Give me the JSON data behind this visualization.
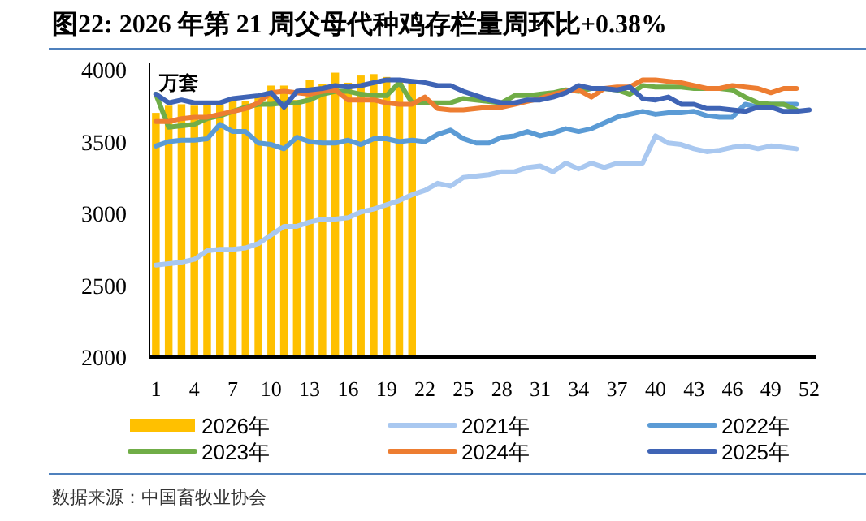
{
  "chart_data": {
    "type": "bar",
    "title": "图22: 2026 年第 21 周父母代种鸡存栏量周环比+0.38%",
    "ylabel": "万套",
    "categories": [
      "1",
      null,
      null,
      "4",
      null,
      null,
      "7",
      null,
      null,
      "10",
      null,
      null,
      "13",
      null,
      null,
      "16",
      null,
      null,
      "19",
      null,
      null,
      "22",
      null,
      null,
      "25",
      null,
      null,
      "28",
      null,
      null,
      "31",
      null,
      null,
      "34",
      null,
      null,
      "37",
      null,
      null,
      "40",
      null,
      null,
      "43",
      null,
      null,
      "46",
      null,
      null,
      "49",
      null,
      null,
      "52"
    ],
    "ylim": [
      2000,
      4000
    ],
    "yticks": [
      2000,
      2500,
      3000,
      3500,
      4000
    ],
    "legend": "bottom",
    "annotations": [
      "数据来源：中国畜牧业协会"
    ],
    "series": [
      {
        "name": "2026年",
        "color": "#ffc000",
        "values": [
          3700,
          3750,
          3760,
          3750,
          3760,
          3760,
          3790,
          3780,
          3830,
          3890,
          3890,
          3790,
          3930,
          3900,
          3980,
          3910,
          3960,
          3970,
          3950,
          3930,
          3930,
          null,
          null,
          null,
          null,
          null,
          null,
          null,
          null,
          null,
          null,
          null,
          null,
          null,
          null,
          null,
          null,
          null,
          null,
          null,
          null,
          null,
          null,
          null,
          null,
          null,
          null,
          null,
          null,
          null,
          null,
          null
        ]
      },
      {
        "name": "2021年",
        "type": "line",
        "color": "#a9c8f0",
        "values": [
          2640,
          2650,
          2660,
          2680,
          2740,
          2750,
          2750,
          2760,
          2790,
          2850,
          2910,
          2910,
          2940,
          2960,
          2960,
          2970,
          3010,
          3030,
          3060,
          3090,
          3130,
          3160,
          3210,
          3190,
          3250,
          3260,
          3270,
          3290,
          3290,
          3320,
          3330,
          3290,
          3350,
          3310,
          3350,
          3320,
          3350,
          3350,
          3350,
          3540,
          3490,
          3480,
          3450,
          3430,
          3440,
          3460,
          3470,
          3450,
          3470,
          3460,
          3450,
          null
        ]
      },
      {
        "name": "2022年",
        "type": "line",
        "color": "#5b9bd5",
        "values": [
          3470,
          3500,
          3510,
          3510,
          3520,
          3620,
          3570,
          3570,
          3490,
          3480,
          3450,
          3530,
          3500,
          3490,
          3490,
          3510,
          3480,
          3520,
          3520,
          3500,
          3510,
          3500,
          3550,
          3580,
          3520,
          3490,
          3490,
          3530,
          3540,
          3570,
          3540,
          3560,
          3590,
          3570,
          3590,
          3630,
          3670,
          3690,
          3710,
          3690,
          3700,
          3700,
          3710,
          3680,
          3670,
          3670,
          3760,
          3740,
          3760,
          3760,
          3760,
          null
        ]
      },
      {
        "name": "2023年",
        "type": "line",
        "color": "#70ad47",
        "values": [
          3830,
          3600,
          3610,
          3620,
          3660,
          3680,
          3710,
          3740,
          3760,
          3760,
          3770,
          3770,
          3790,
          3830,
          3850,
          3850,
          3830,
          3820,
          3820,
          3910,
          3770,
          3770,
          3770,
          3770,
          3800,
          3790,
          3780,
          3770,
          3820,
          3820,
          3830,
          3840,
          3860,
          3850,
          3870,
          3870,
          3860,
          3830,
          3890,
          3880,
          3880,
          3880,
          3870,
          3870,
          3870,
          3860,
          3810,
          3770,
          3760,
          3760,
          3720,
          null
        ]
      },
      {
        "name": "2024年",
        "type": "line",
        "color": "#ed7d31",
        "values": [
          3640,
          3640,
          3660,
          3670,
          3670,
          3690,
          3710,
          3730,
          3770,
          3840,
          3850,
          3840,
          3830,
          3850,
          3860,
          3790,
          3790,
          3790,
          3770,
          3760,
          3760,
          3810,
          3730,
          3720,
          3720,
          3730,
          3740,
          3740,
          3760,
          3780,
          3800,
          3830,
          3850,
          3860,
          3810,
          3870,
          3880,
          3880,
          3930,
          3930,
          3920,
          3910,
          3890,
          3870,
          3870,
          3890,
          3880,
          3870,
          3840,
          3870,
          3870,
          null
        ]
      },
      {
        "name": "2025年",
        "type": "line",
        "color": "#3f64b5",
        "values": [
          3830,
          3770,
          3790,
          3770,
          3770,
          3770,
          3800,
          3810,
          3820,
          3840,
          3740,
          3850,
          3860,
          3870,
          3890,
          3880,
          3890,
          3910,
          3930,
          3930,
          3920,
          3910,
          3890,
          3890,
          3850,
          3820,
          3790,
          3770,
          3770,
          3790,
          3790,
          3810,
          3840,
          3890,
          3870,
          3870,
          3860,
          3880,
          3800,
          3790,
          3810,
          3760,
          3760,
          3730,
          3730,
          3720,
          3710,
          3740,
          3740,
          3710,
          3710,
          3720
        ]
      }
    ]
  }
}
